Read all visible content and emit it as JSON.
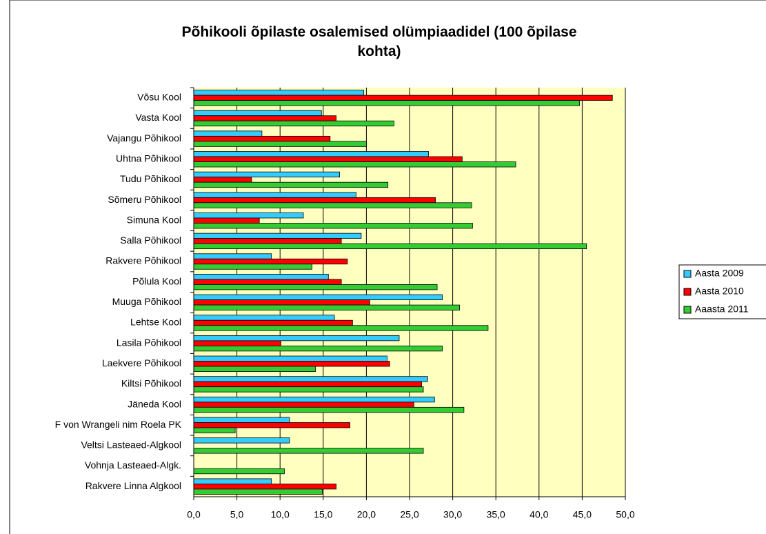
{
  "chart_data": {
    "type": "barh",
    "title": "Põhikooli õpilaste osalemised olümpiaadidel (100 õpilase kohta)",
    "categories": [
      "Võsu Kool",
      "Vasta Kool",
      "Vajangu Põhikool",
      "Uhtna Põhikool",
      "Tudu Põhikool",
      "Sõmeru Põhikool",
      "Simuna Kool",
      "Salla Põhikool",
      "Rakvere Põhikool",
      "Põlula Kool",
      "Muuga Põhikool",
      "Lehtse Kool",
      "Lasila Põhikool",
      "Laekvere Põhikool",
      "Kiltsi Põhikool",
      "Jäneda Kool",
      "F von Wrangeli nim Roela PK",
      "Veltsi Lasteaed-Algkool",
      "Vohnja Lasteaed-Algk.",
      "Rakvere Linna Algkool"
    ],
    "series": [
      {
        "name": "Aasta 2009",
        "color": "#33ccff",
        "values": [
          19.7,
          14.8,
          7.9,
          27.2,
          16.9,
          18.8,
          12.7,
          19.4,
          9.0,
          15.6,
          28.8,
          16.3,
          23.8,
          22.4,
          27.1,
          27.9,
          11.1,
          11.1,
          0,
          9.0
        ]
      },
      {
        "name": "Aasta 2010",
        "color": "#ff0000",
        "values": [
          48.5,
          16.5,
          15.8,
          31.1,
          6.7,
          28.0,
          7.6,
          17.1,
          17.8,
          17.1,
          20.4,
          18.4,
          10.1,
          22.7,
          26.4,
          25.5,
          18.1,
          0,
          0,
          16.5
        ]
      },
      {
        "name": "Aaasta 2011",
        "color": "#33cc33",
        "values": [
          44.7,
          23.2,
          20.0,
          37.3,
          22.5,
          32.2,
          32.3,
          45.5,
          13.7,
          28.2,
          30.8,
          34.1,
          28.8,
          14.1,
          26.6,
          31.3,
          4.8,
          26.6,
          10.5,
          14.9
        ]
      }
    ],
    "xlim": [
      0,
      50
    ],
    "xticks": [
      {
        "value": 0,
        "label": "0,0"
      },
      {
        "value": 5,
        "label": "5,0"
      },
      {
        "value": 10,
        "label": "10,0"
      },
      {
        "value": 15,
        "label": "15,0"
      },
      {
        "value": 20,
        "label": "20,0"
      },
      {
        "value": 25,
        "label": "25,0"
      },
      {
        "value": 30,
        "label": "30,0"
      },
      {
        "value": 35,
        "label": "35,0"
      },
      {
        "value": 40,
        "label": "40,0"
      },
      {
        "value": 45,
        "label": "45,0"
      },
      {
        "value": 50,
        "label": "50,0"
      }
    ],
    "grid": true,
    "legend": "right"
  }
}
